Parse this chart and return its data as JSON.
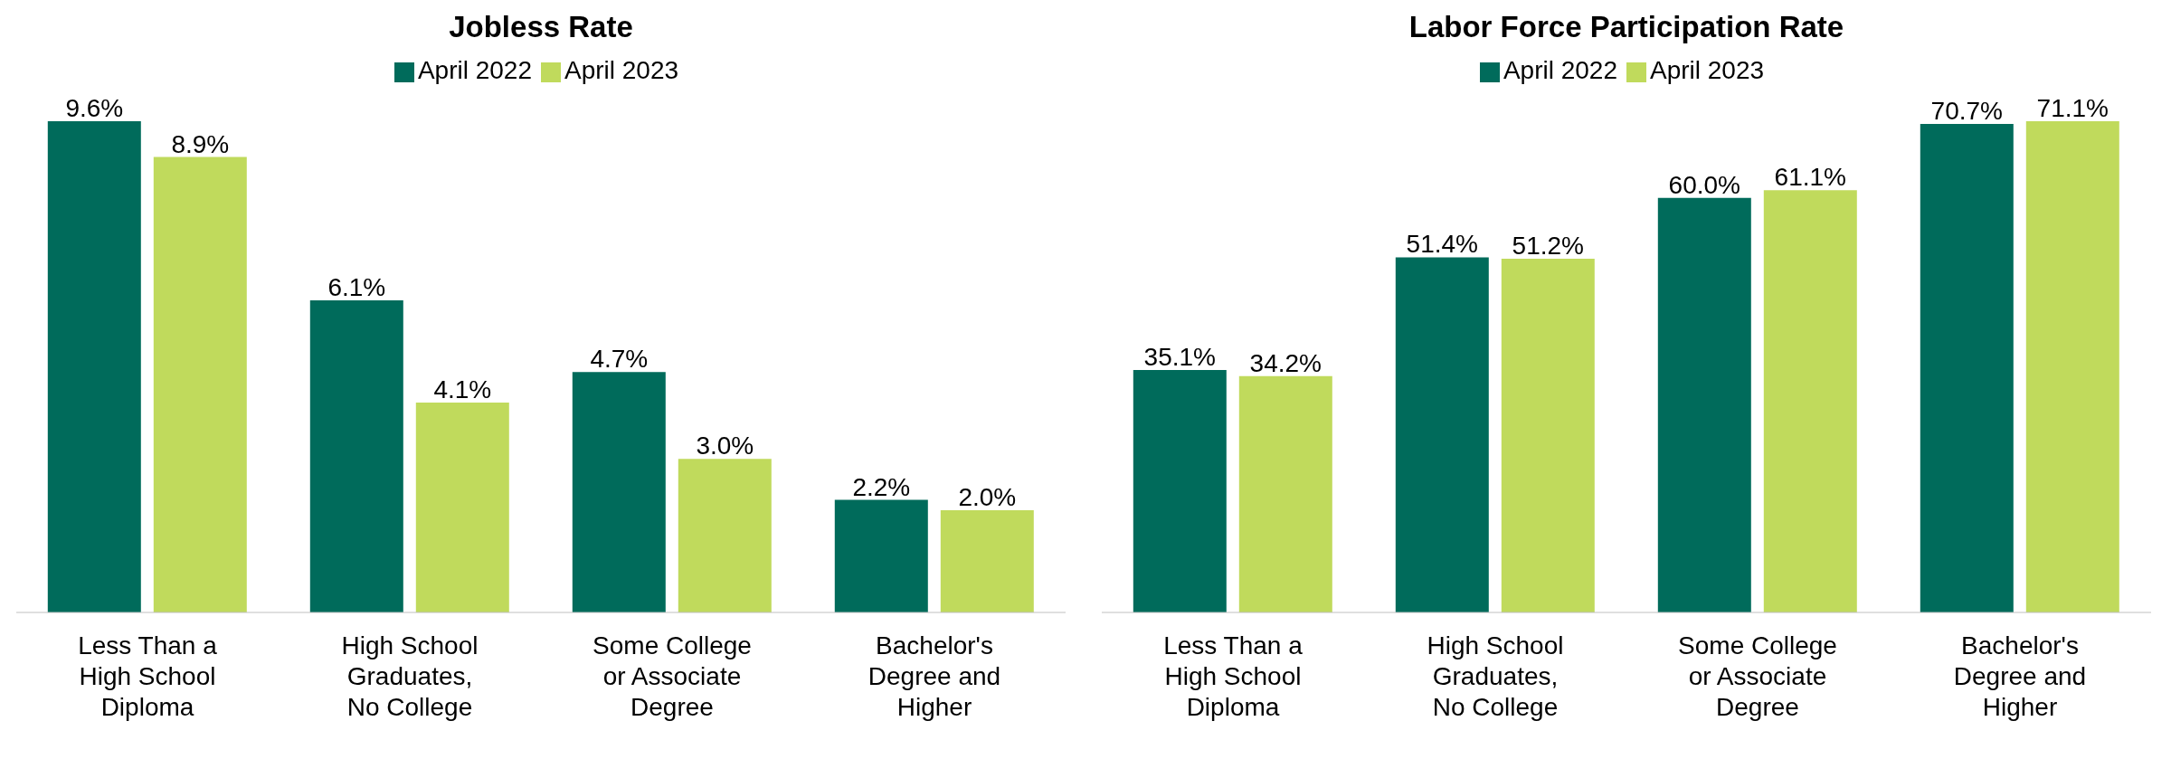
{
  "chart_data": [
    {
      "type": "bar",
      "title": "Jobless Rate",
      "categories": [
        "Less Than a High School Diploma",
        "High School Graduates, No College",
        "Some College or Associate Degree",
        "Bachelor's Degree and Higher"
      ],
      "legend": "top",
      "series": [
        {
          "name": "April 2022",
          "color": "#006b5b",
          "values": [
            9.6,
            6.1,
            4.7,
            2.2
          ],
          "value_labels": [
            "9.6%",
            "6.1%",
            "4.7%",
            "2.2%"
          ]
        },
        {
          "name": "April 2023",
          "color": "#c0da5c",
          "values": [
            8.9,
            4.1,
            3.0,
            2.0
          ],
          "value_labels": [
            "8.9%",
            "4.1%",
            "3.0%",
            "2.0%"
          ]
        }
      ]
    },
    {
      "type": "bar",
      "title": "Labor Force Participation Rate",
      "categories": [
        "Less Than a High School Diploma",
        "High School Graduates, No College",
        "Some College or Associate Degree",
        "Bachelor's Degree and Higher"
      ],
      "legend": "top",
      "series": [
        {
          "name": "April 2022",
          "color": "#006b5b",
          "values": [
            35.1,
            51.4,
            60.0,
            70.7
          ],
          "value_labels": [
            "35.1%",
            "51.4%",
            "60.0%",
            "70.7%"
          ]
        },
        {
          "name": "April 2023",
          "color": "#c0da5c",
          "values": [
            34.2,
            51.2,
            61.1,
            71.1
          ],
          "value_labels": [
            "34.2%",
            "51.2%",
            "61.1%",
            "71.1%"
          ]
        }
      ]
    }
  ]
}
